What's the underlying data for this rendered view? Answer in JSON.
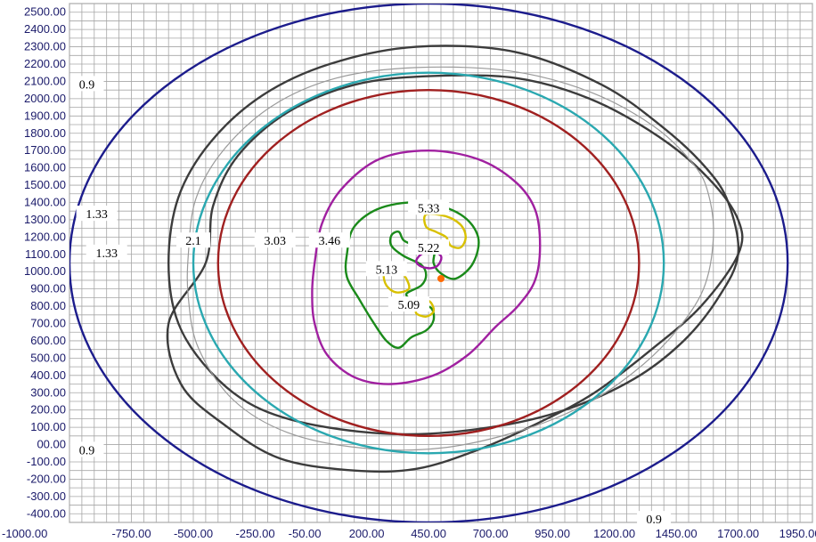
{
  "chart_data": {
    "type": "contour",
    "title": "",
    "xlabel": "",
    "ylabel": "",
    "xlim": [
      -1000,
      2000
    ],
    "ylim": [
      -450,
      2550
    ],
    "grid": true,
    "x_ticks": [
      {
        "value": -1000,
        "label": "-1000.00"
      },
      {
        "value": -750,
        "label": "-750.00"
      },
      {
        "value": -500,
        "label": "-500.00"
      },
      {
        "value": -250,
        "label": "-250.00"
      },
      {
        "value": -50,
        "label": "-50.00"
      },
      {
        "value": 200,
        "label": "200.00"
      },
      {
        "value": 450,
        "label": "450.00"
      },
      {
        "value": 700,
        "label": "700.00"
      },
      {
        "value": 950,
        "label": "950.00"
      },
      {
        "value": 1200,
        "label": "1200.00"
      },
      {
        "value": 1450,
        "label": "1450.00"
      },
      {
        "value": 1700,
        "label": "1700.00"
      },
      {
        "value": 1950,
        "label": "1950.00"
      }
    ],
    "y_ticks": [
      {
        "value": 2500,
        "label": "2500.00"
      },
      {
        "value": 2400,
        "label": "2400.00"
      },
      {
        "value": 2300,
        "label": "2300.00"
      },
      {
        "value": 2200,
        "label": "2200.00"
      },
      {
        "value": 2100,
        "label": "2100.00"
      },
      {
        "value": 2000,
        "label": "2000.00"
      },
      {
        "value": 1900,
        "label": "1900.00"
      },
      {
        "value": 1800,
        "label": "1800.00"
      },
      {
        "value": 1700,
        "label": "1700.00"
      },
      {
        "value": 1600,
        "label": "1600.00"
      },
      {
        "value": 1500,
        "label": "1500.00"
      },
      {
        "value": 1400,
        "label": "1400.00"
      },
      {
        "value": 1300,
        "label": "1300.00"
      },
      {
        "value": 1200,
        "label": "1200.00"
      },
      {
        "value": 1100,
        "label": "1100.00"
      },
      {
        "value": 1000,
        "label": "1000.00"
      },
      {
        "value": 900,
        "label": "900.00"
      },
      {
        "value": 800,
        "label": "800.00"
      },
      {
        "value": 700,
        "label": "700.00"
      },
      {
        "value": 600,
        "label": "600.00"
      },
      {
        "value": 500,
        "label": "500.00"
      },
      {
        "value": 400,
        "label": "400.00"
      },
      {
        "value": 300,
        "label": "300.00"
      },
      {
        "value": 200,
        "label": "200.00"
      },
      {
        "value": 100,
        "label": "100.00"
      },
      {
        "value": 0,
        "label": "00.00"
      },
      {
        "value": -100,
        "label": "-100.00"
      },
      {
        "value": -200,
        "label": "-200.00"
      },
      {
        "value": -300,
        "label": "-300.00"
      },
      {
        "value": -400,
        "label": "-400.00"
      }
    ],
    "contours": [
      {
        "level": "0.9",
        "color": "#1c1c8c",
        "kind": "ellipse",
        "cx": 450,
        "cy": 1050,
        "rx": 1450,
        "ry": 1500
      },
      {
        "level": "1.33",
        "color": "#3c3c3c",
        "kind": "points",
        "points": [
          [
            -600,
            1050
          ],
          [
            -560,
            1430
          ],
          [
            -430,
            1750
          ],
          [
            -220,
            2020
          ],
          [
            50,
            2200
          ],
          [
            400,
            2300
          ],
          [
            800,
            2270
          ],
          [
            1150,
            2080
          ],
          [
            1400,
            1830
          ],
          [
            1570,
            1600
          ],
          [
            1660,
            1400
          ],
          [
            1700,
            1100
          ],
          [
            1620,
            850
          ],
          [
            1480,
            600
          ],
          [
            1280,
            380
          ],
          [
            1000,
            200
          ],
          [
            700,
            100
          ],
          [
            350,
            60
          ],
          [
            0,
            110
          ],
          [
            -250,
            220
          ],
          [
            -430,
            420
          ],
          [
            -560,
            700
          ],
          [
            -600,
            1050
          ]
        ]
      },
      {
        "level": "1.33",
        "color": "#3c3c3c",
        "kind": "points",
        "points": [
          [
            -450,
            1050
          ],
          [
            -420,
            1380
          ],
          [
            -320,
            1670
          ],
          [
            -120,
            1920
          ],
          [
            150,
            2080
          ],
          [
            450,
            2130
          ],
          [
            800,
            2120
          ],
          [
            1100,
            2000
          ],
          [
            1380,
            1780
          ],
          [
            1580,
            1540
          ],
          [
            1700,
            1300
          ],
          [
            1700,
            1100
          ],
          [
            1550,
            800
          ],
          [
            1350,
            550
          ],
          [
            1120,
            300
          ],
          [
            900,
            130
          ],
          [
            650,
            -30
          ],
          [
            400,
            -140
          ],
          [
            150,
            -150
          ],
          [
            -150,
            -80
          ],
          [
            -380,
            120
          ],
          [
            -550,
            350
          ],
          [
            -600,
            700
          ],
          [
            -450,
            1050
          ]
        ]
      },
      {
        "level": "",
        "color": "#9a9a9a",
        "kind": "points",
        "points": [
          [
            -520,
            1100
          ],
          [
            -490,
            1420
          ],
          [
            -380,
            1700
          ],
          [
            -180,
            1960
          ],
          [
            80,
            2120
          ],
          [
            400,
            2180
          ],
          [
            780,
            2160
          ],
          [
            1100,
            2040
          ],
          [
            1360,
            1840
          ],
          [
            1520,
            1620
          ],
          [
            1580,
            1450
          ],
          [
            1600,
            1200
          ],
          [
            1560,
            900
          ],
          [
            1440,
            640
          ],
          [
            1280,
            420
          ],
          [
            1080,
            230
          ],
          [
            820,
            80
          ],
          [
            500,
            -20
          ],
          [
            180,
            -20
          ],
          [
            -120,
            70
          ],
          [
            -340,
            260
          ],
          [
            -480,
            560
          ],
          [
            -520,
            850
          ],
          [
            -520,
            1100
          ]
        ]
      },
      {
        "level": "",
        "color": "#2aa8b0",
        "kind": "ellipse",
        "cx": 450,
        "cy": 1050,
        "rx": 950,
        "ry": 1100
      },
      {
        "level": "2.1",
        "color": "#a02020",
        "kind": "ellipse",
        "cx": 450,
        "cy": 1050,
        "rx": 850,
        "ry": 1000
      },
      {
        "level": "3.03",
        "color": "#a020a0",
        "kind": "points",
        "points": [
          [
            -10,
            1050
          ],
          [
            20,
            1280
          ],
          [
            100,
            1480
          ],
          [
            250,
            1650
          ],
          [
            450,
            1700
          ],
          [
            650,
            1650
          ],
          [
            800,
            1520
          ],
          [
            880,
            1360
          ],
          [
            900,
            1150
          ],
          [
            880,
            950
          ],
          [
            810,
            800
          ],
          [
            720,
            680
          ],
          [
            610,
            520
          ],
          [
            470,
            400
          ],
          [
            300,
            350
          ],
          [
            150,
            390
          ],
          [
            40,
            520
          ],
          [
            -10,
            700
          ],
          [
            -20,
            880
          ],
          [
            -10,
            1050
          ]
        ]
      },
      {
        "level": "3.46",
        "color": "#1a8a1a",
        "kind": "points",
        "points": [
          [
            120,
            1100
          ],
          [
            150,
            1260
          ],
          [
            260,
            1370
          ],
          [
            430,
            1400
          ],
          [
            580,
            1330
          ],
          [
            650,
            1200
          ],
          [
            630,
            1050
          ],
          [
            560,
            960
          ],
          [
            500,
            990
          ],
          [
            470,
            1050
          ],
          [
            470,
            1130
          ],
          [
            400,
            1150
          ],
          [
            350,
            1180
          ],
          [
            330,
            1230
          ],
          [
            300,
            1210
          ],
          [
            300,
            1150
          ],
          [
            350,
            1090
          ],
          [
            420,
            1040
          ],
          [
            440,
            980
          ],
          [
            420,
            920
          ],
          [
            360,
            870
          ],
          [
            400,
            820
          ],
          [
            460,
            790
          ],
          [
            470,
            720
          ],
          [
            440,
            660
          ],
          [
            380,
            620
          ],
          [
            330,
            560
          ],
          [
            280,
            600
          ],
          [
            230,
            700
          ],
          [
            170,
            840
          ],
          [
            120,
            970
          ],
          [
            120,
            1100
          ]
        ]
      },
      {
        "level": "5.33",
        "color": "#d8c000",
        "kind": "points",
        "points": [
          [
            440,
            1330
          ],
          [
            520,
            1320
          ],
          [
            580,
            1270
          ],
          [
            600,
            1200
          ],
          [
            580,
            1140
          ],
          [
            540,
            1150
          ],
          [
            520,
            1200
          ],
          [
            480,
            1230
          ],
          [
            440,
            1260
          ],
          [
            440,
            1330
          ]
        ]
      },
      {
        "level": "5.13",
        "color": "#d8c000",
        "kind": "points",
        "points": [
          [
            300,
            1050
          ],
          [
            270,
            990
          ],
          [
            280,
            920
          ],
          [
            320,
            880
          ],
          [
            370,
            900
          ],
          [
            360,
            960
          ],
          [
            330,
            1010
          ],
          [
            300,
            1050
          ]
        ]
      },
      {
        "level": "5.22",
        "color": "#9a1aa0",
        "kind": "points",
        "points": [
          [
            400,
            1060
          ],
          [
            420,
            1100
          ],
          [
            460,
            1120
          ],
          [
            500,
            1090
          ],
          [
            490,
            1040
          ],
          [
            460,
            1020
          ],
          [
            420,
            1030
          ],
          [
            400,
            1060
          ]
        ]
      },
      {
        "level": "5.09",
        "color": "#d8c000",
        "kind": "points",
        "points": [
          [
            400,
            760
          ],
          [
            440,
            740
          ],
          [
            470,
            770
          ],
          [
            460,
            820
          ],
          [
            430,
            840
          ],
          [
            410,
            800
          ],
          [
            400,
            760
          ]
        ]
      }
    ],
    "labels": [
      {
        "text": "0.9",
        "x": -930,
        "y": 2085
      },
      {
        "text": "0.9",
        "x": -930,
        "y": -30
      },
      {
        "text": "0.9",
        "x": 1360,
        "y": -430
      },
      {
        "text": "1.33",
        "x": -890,
        "y": 1335
      },
      {
        "text": "1.33",
        "x": -850,
        "y": 1110
      },
      {
        "text": "2.1",
        "x": -500,
        "y": 1180
      },
      {
        "text": "3.03",
        "x": -170,
        "y": 1180
      },
      {
        "text": "3.46",
        "x": 50,
        "y": 1180
      },
      {
        "text": "5.33",
        "x": 450,
        "y": 1370
      },
      {
        "text": "5.22",
        "x": 450,
        "y": 1140
      },
      {
        "text": "5.13",
        "x": 280,
        "y": 1015
      },
      {
        "text": "5.09",
        "x": 370,
        "y": 810
      }
    ],
    "marker": {
      "x": 500,
      "y": 960,
      "color": "#ff6a00"
    }
  }
}
